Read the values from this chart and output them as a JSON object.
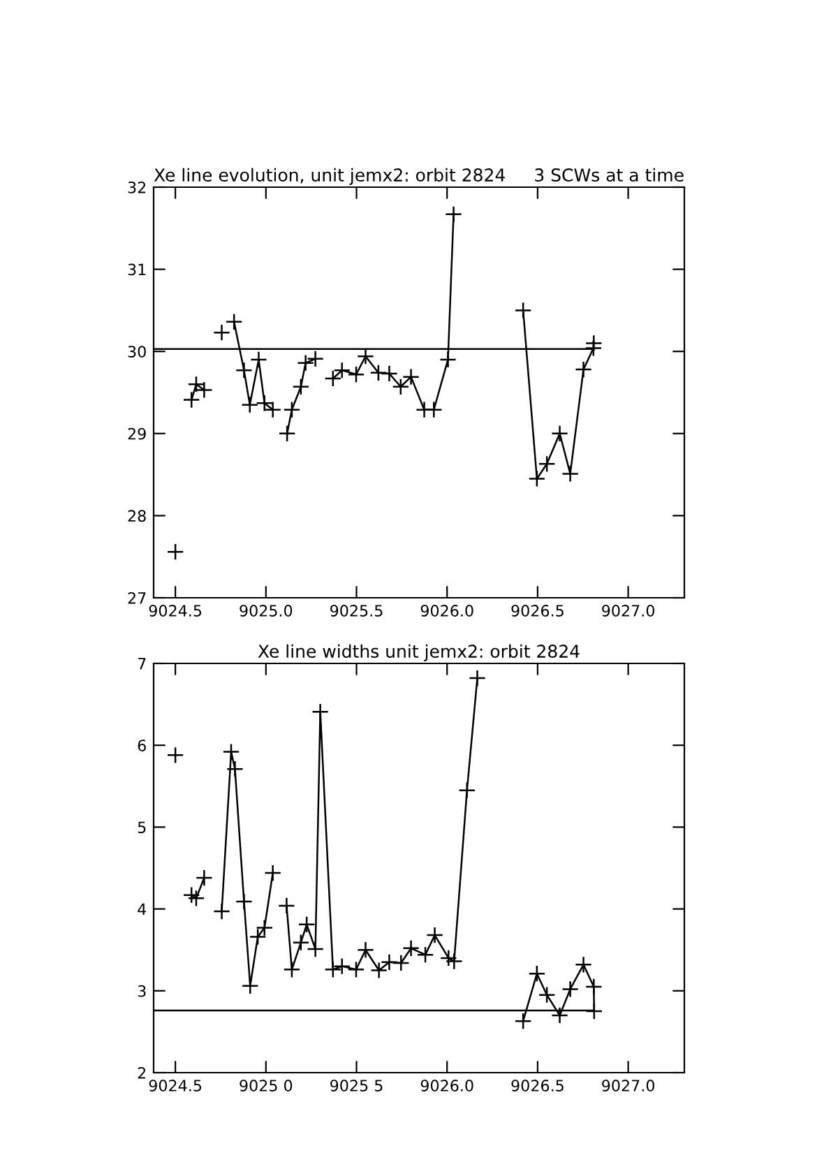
{
  "chart_data": [
    {
      "type": "line",
      "title": "Xe line evolution, unit jemx2: orbit 2824",
      "subtitle": "3 SCWs at a time",
      "marker": "cross",
      "grid": false,
      "legend": false,
      "xlim": [
        9024.38,
        9027.31
      ],
      "xticks": [
        {
          "value": 9024.5,
          "label": "9024.5"
        },
        {
          "value": 9025.0,
          "label": "9025.0"
        },
        {
          "value": 9025.5,
          "label": "9025.5"
        },
        {
          "value": 9026.0,
          "label": "9026.0"
        },
        {
          "value": 9026.5,
          "label": "9026.5"
        },
        {
          "value": 9027.0,
          "label": "9027.0"
        }
      ],
      "ylim": [
        27,
        32
      ],
      "yticks": [
        27,
        28,
        29,
        30,
        31,
        32
      ],
      "series": [
        {
          "color": "#000000",
          "x": [
            9024.5,
            9024.53,
            9024.589,
            9024.615,
            9024.659,
            9024.7,
            9024.756,
            9024.78,
            9024.824,
            9024.879,
            9024.911,
            9024.96,
            9024.992,
            9025.038,
            9025.05,
            9025.1,
            9025.117,
            9025.143,
            9025.193,
            9025.219,
            9025.273,
            9025.32,
            9025.37,
            9025.42,
            9025.498,
            9025.55,
            9025.621,
            9025.681,
            9025.744,
            9025.801,
            9025.874,
            9025.927,
            9026.005,
            9026.036,
            9026.1,
            9026.2,
            9026.42,
            9026.496,
            9026.551,
            9026.622,
            9026.68,
            9026.753,
            9026.808,
            9026.81
          ],
          "values": [
            27.56,
            null,
            29.41,
            29.6,
            29.53,
            null,
            30.23,
            null,
            30.36,
            29.77,
            29.35,
            29.9,
            29.37,
            29.29,
            null,
            null,
            29.0,
            29.29,
            29.57,
            29.86,
            29.91,
            null,
            29.67,
            29.77,
            29.72,
            29.94,
            29.74,
            29.73,
            29.57,
            29.69,
            29.29,
            29.29,
            29.9,
            31.67,
            null,
            null,
            30.5,
            28.45,
            28.63,
            29.0,
            28.51,
            29.78,
            30.04,
            30.1
          ]
        },
        {
          "color": "#000000",
          "marker": "none",
          "x": [
            9024.38,
            9026.81
          ],
          "values": [
            30.03,
            30.03
          ]
        }
      ]
    },
    {
      "type": "line",
      "title": "Xe line widths unit jemx2: orbit 2824",
      "marker": "cross",
      "grid": false,
      "legend": false,
      "xlim": [
        9024.38,
        9027.31
      ],
      "xticks": [
        {
          "value": 9024.5,
          "label": "9024.5"
        },
        {
          "value": 9025.0,
          "label": "9025 0"
        },
        {
          "value": 9025.5,
          "label": "9025 5"
        },
        {
          "value": 9026.0,
          "label": "9026.0"
        },
        {
          "value": 9026.5,
          "label": "9026.5"
        },
        {
          "value": 9027.0,
          "label": "9027.0"
        }
      ],
      "ylim": [
        2,
        7
      ],
      "yticks": [
        2,
        3,
        4,
        5,
        6,
        7
      ],
      "series": [
        {
          "color": "#000000",
          "x": [
            9024.5,
            9024.53,
            9024.589,
            9024.615,
            9024.659,
            9024.7,
            9024.756,
            9024.808,
            9024.829,
            9024.879,
            9024.913,
            9024.955,
            9024.992,
            9025.038,
            9025.07,
            9025.114,
            9025.143,
            9025.193,
            9025.225,
            9025.273,
            9025.3,
            9025.37,
            9025.42,
            9025.498,
            9025.55,
            9025.624,
            9025.681,
            9025.746,
            9025.801,
            9025.88,
            9025.932,
            9026.008,
            9026.039,
            9026.11,
            9026.167,
            9026.2,
            9026.42,
            9026.496,
            9026.551,
            9026.622,
            9026.68,
            9026.753,
            9026.81,
            9026.812
          ],
          "values": [
            5.88,
            null,
            4.17,
            4.13,
            4.38,
            null,
            3.97,
            5.92,
            5.71,
            4.09,
            3.06,
            3.66,
            3.77,
            4.44,
            null,
            4.04,
            3.26,
            3.59,
            3.81,
            3.51,
            6.41,
            3.26,
            3.3,
            3.26,
            3.5,
            3.25,
            3.35,
            3.34,
            3.52,
            3.44,
            3.68,
            3.4,
            3.36,
            5.45,
            6.82,
            null,
            2.63,
            3.21,
            2.95,
            2.7,
            3.02,
            3.32,
            3.05,
            2.75
          ]
        },
        {
          "color": "#000000",
          "marker": "none",
          "x": [
            9024.38,
            9026.81
          ],
          "values": [
            2.76,
            2.76
          ]
        }
      ]
    }
  ]
}
